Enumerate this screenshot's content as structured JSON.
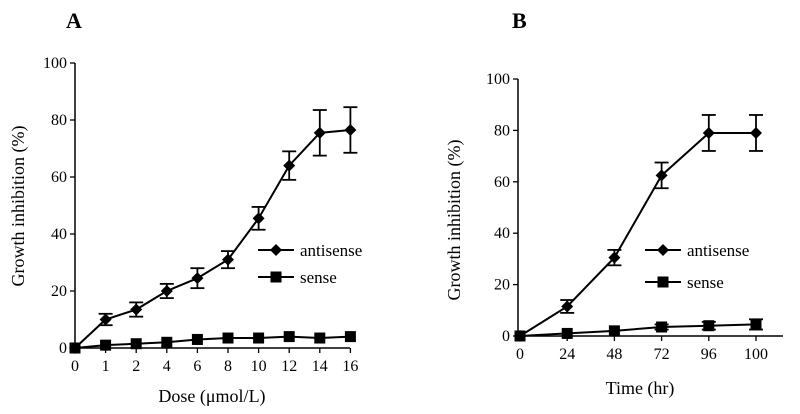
{
  "chart_data": [
    {
      "type": "line",
      "panel": "A",
      "xlabel": "Dose (μmol/L)",
      "ylabel": "Growth inhibition (%)",
      "ylim": [
        0,
        100
      ],
      "yticks": [
        "0",
        "20",
        "40",
        "60",
        "80",
        "100"
      ],
      "categories": [
        "0",
        "1",
        "2",
        "4",
        "6",
        "8",
        "10",
        "12",
        "14",
        "16"
      ],
      "legend": "center-right",
      "series": [
        {
          "name": "antisense",
          "marker": "diamond",
          "values": [
            0,
            10,
            13.5,
            20,
            24.5,
            31,
            45.5,
            64,
            75.5,
            76.5
          ],
          "errors": [
            0,
            2,
            2.5,
            2.5,
            3.5,
            3,
            4,
            5,
            8,
            8
          ]
        },
        {
          "name": "sense",
          "marker": "square",
          "values": [
            0,
            1,
            1.5,
            2,
            3,
            3.5,
            3.5,
            4,
            3.5,
            4
          ],
          "errors": [
            0,
            0,
            0,
            0,
            0,
            0,
            0,
            0,
            0,
            0
          ]
        }
      ]
    },
    {
      "type": "line",
      "panel": "B",
      "xlabel": "Time (hr)",
      "ylabel": "Growth inhibition (%)",
      "ylim": [
        0,
        100
      ],
      "yticks": [
        "0",
        "20",
        "40",
        "60",
        "80",
        "100"
      ],
      "categories": [
        "0",
        "24",
        "48",
        "72",
        "96",
        "100"
      ],
      "legend": "center-right",
      "series": [
        {
          "name": "antisense",
          "marker": "diamond",
          "values": [
            0,
            11.5,
            30.5,
            62.5,
            79,
            79
          ],
          "errors": [
            0,
            2.5,
            3,
            5,
            7,
            7
          ]
        },
        {
          "name": "sense",
          "marker": "square",
          "values": [
            0,
            1,
            2,
            3.5,
            4,
            4.5
          ],
          "errors": [
            0,
            0,
            0,
            1,
            1.5,
            2
          ]
        }
      ]
    }
  ]
}
